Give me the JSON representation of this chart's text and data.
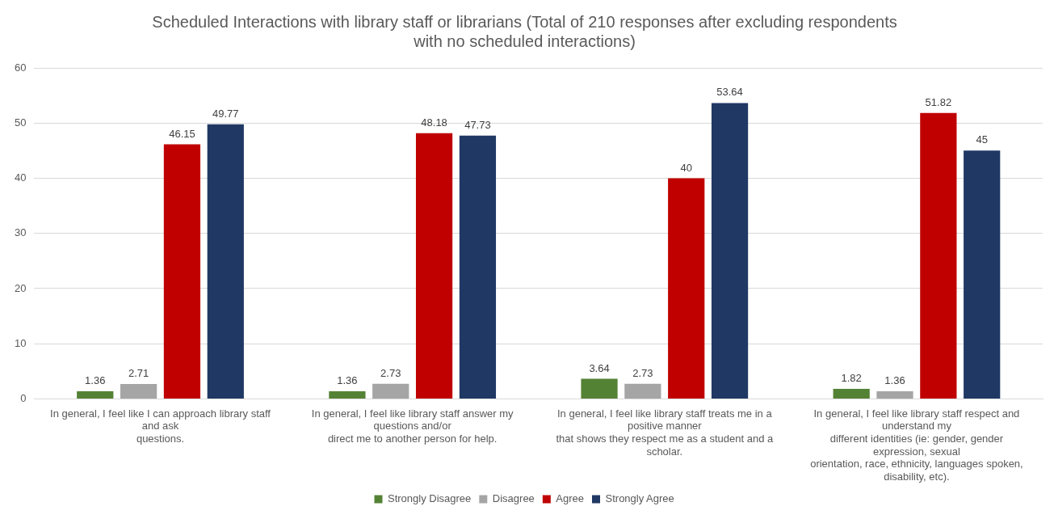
{
  "chart_data": {
    "type": "bar",
    "title": "Scheduled Interactions with library staff or librarians (Total of 210 responses after excluding respondents\nwith no scheduled interactions)",
    "categories": [
      "In general, I feel like I can approach library staff\nand ask\nquestions.",
      "In general, I feel like library staff answer my\nquestions and/or\ndirect me to another person for help.",
      "In general, I feel like library staff treats me in a\npositive manner\nthat shows they respect me as a student and a\nscholar.",
      "In general, I feel like library staff respect and\nunderstand my\ndifferent identities (ie: gender, gender\nexpression, sexual\norientation, race, ethnicity, languages spoken,\ndisability, etc)."
    ],
    "series": [
      {
        "name": "Strongly Disagree",
        "color": "#548235",
        "values": [
          1.36,
          1.36,
          3.64,
          1.82
        ]
      },
      {
        "name": "Disagree",
        "color": "#a5a5a5",
        "values": [
          2.71,
          2.73,
          2.73,
          1.36
        ]
      },
      {
        "name": "Agree",
        "color": "#c00000",
        "values": [
          46.15,
          48.18,
          40,
          51.82
        ]
      },
      {
        "name": "Strongly Agree",
        "color": "#203864",
        "values": [
          49.77,
          47.73,
          53.64,
          45
        ]
      }
    ],
    "ylim": [
      0,
      60
    ],
    "yticks": [
      0,
      10,
      20,
      30,
      40,
      50,
      60
    ],
    "grid": "y",
    "legend": "bottom",
    "data_labels": true
  }
}
